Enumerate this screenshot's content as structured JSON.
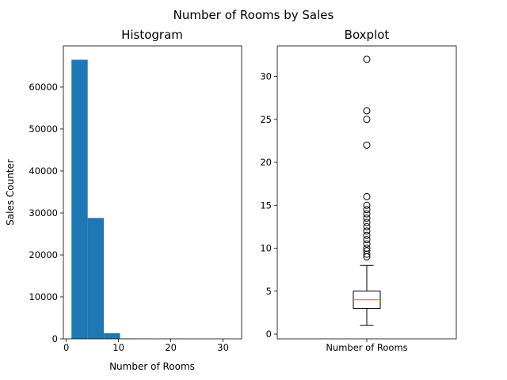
{
  "figure": {
    "title": "Number of Rooms by Sales"
  },
  "chart_data": [
    {
      "type": "bar",
      "subtype": "histogram",
      "title": "Histogram",
      "xlabel": "Number of Rooms",
      "ylabel": "Sales Counter",
      "xlim": [
        -0.55,
        33.55
      ],
      "ylim": [
        0,
        69800
      ],
      "xticks": [
        0,
        10,
        20,
        30
      ],
      "yticks": [
        0,
        10000,
        20000,
        30000,
        40000,
        50000,
        60000
      ],
      "bins": [
        {
          "x0": 1.0,
          "x1": 4.1,
          "count": 66500
        },
        {
          "x0": 4.1,
          "x1": 7.2,
          "count": 28800
        },
        {
          "x0": 7.2,
          "x1": 10.3,
          "count": 1350
        },
        {
          "x0": 10.3,
          "x1": 13.4,
          "count": 80
        },
        {
          "x0": 13.4,
          "x1": 16.5,
          "count": 30
        },
        {
          "x0": 16.5,
          "x1": 19.6,
          "count": 0
        },
        {
          "x0": 19.6,
          "x1": 22.7,
          "count": 5
        },
        {
          "x0": 22.7,
          "x1": 25.8,
          "count": 2
        },
        {
          "x0": 25.8,
          "x1": 28.9,
          "count": 1
        },
        {
          "x0": 28.9,
          "x1": 32.0,
          "count": 1
        }
      ],
      "color": "#1f77b4",
      "grid": false
    },
    {
      "type": "boxplot",
      "title": "Boxplot",
      "xlabel": "Number of Rooms",
      "ylim": [
        -0.55,
        33.55
      ],
      "yticks": [
        0,
        5,
        10,
        15,
        20,
        25,
        30
      ],
      "whisker_low": 1,
      "q1": 3,
      "median": 4,
      "q3": 5,
      "whisker_high": 8,
      "fliers": [
        9,
        9.3,
        9.7,
        10,
        10.5,
        11,
        11.5,
        12,
        12.5,
        13,
        13.5,
        14,
        14.5,
        15,
        16,
        22,
        25,
        26,
        32
      ],
      "median_color": "#ff7f0e",
      "grid": false
    }
  ]
}
